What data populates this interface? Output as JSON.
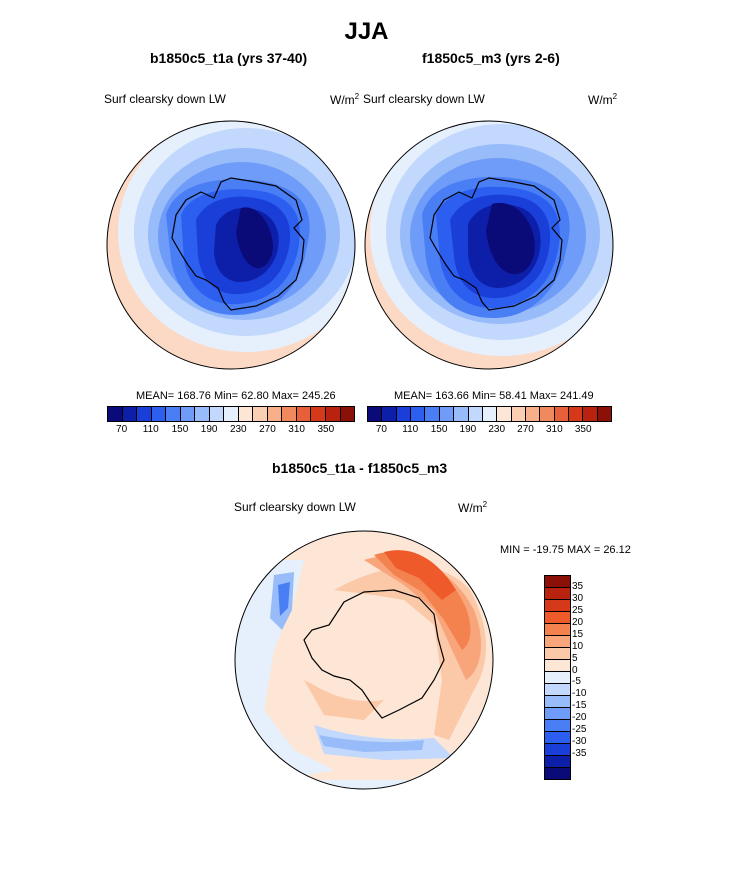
{
  "figure": {
    "title": "JJA"
  },
  "left_panel": {
    "title": "b1850c5_t1a (yrs 37-40)",
    "variable": "Surf clearsky down LW",
    "units": "W/m",
    "units_sup": "2",
    "stats": "MEAN= 168.76  Min=  62.80  Max= 245.26"
  },
  "right_panel": {
    "title": "f1850c5_m3 (yrs 2-6)",
    "variable": "Surf clearsky down LW",
    "units": "W/m",
    "units_sup": "2",
    "stats": "MEAN= 163.66  Min=  58.41  Max= 241.49"
  },
  "diff_panel": {
    "title": "b1850c5_t1a - f1850c5_m3",
    "variable": "Surf clearsky down LW",
    "units": "W/m",
    "units_sup": "2",
    "stats": "MIN = -19.75 MAX =  26.12"
  },
  "colorbar_abs": {
    "colors": [
      "#0a0a78",
      "#0d1fa8",
      "#1a3fd8",
      "#2c5ef0",
      "#4a7ef5",
      "#6f9cf8",
      "#98bbfa",
      "#c2d8fc",
      "#e6f0fd",
      "#fde6d6",
      "#fbcfb2",
      "#f7b08a",
      "#f08a5e",
      "#e8603a",
      "#d6381a",
      "#b8220e",
      "#8a1008"
    ],
    "ticks": [
      "70",
      "110",
      "150",
      "190",
      "230",
      "270",
      "310",
      "350"
    ]
  },
  "colorbar_diff": {
    "colors_top_to_bottom": [
      "#8a1008",
      "#b8220e",
      "#d6381a",
      "#ee5a2a",
      "#f4824f",
      "#f8a57c",
      "#fbc8a8",
      "#fde6d6",
      "#e6f0fd",
      "#c2d8fc",
      "#98bbfa",
      "#6f9cf8",
      "#4a7ef5",
      "#2c5ef0",
      "#1a3fd8",
      "#0d1fa8",
      "#0a0a78"
    ],
    "ticks": [
      "35",
      "30",
      "25",
      "20",
      "15",
      "10",
      "5",
      "0",
      "-5",
      "-10",
      "-15",
      "-20",
      "-25",
      "-30",
      "-35"
    ]
  },
  "fields": {
    "abs_outer": "#fbd9c4",
    "abs_ring1": "#e6f0fd",
    "abs_ring2": "#c2d8fc",
    "abs_ring3": "#98bbfa",
    "abs_ring4": "#6f9cf8",
    "abs_ring5": "#4a7ef5",
    "abs_ring6": "#2c5ef0",
    "abs_ring7": "#1a3fd8",
    "abs_core": "#0d1fa8",
    "abs_center": "#0a0a78",
    "diff_base": "#fde6d6",
    "diff_ocean": "#e6f0fd",
    "diff_warm1": "#fbc8a8",
    "diff_warm2": "#f8a57c",
    "diff_warm3": "#f4824f",
    "diff_warm4": "#ee5a2a",
    "diff_cool1": "#c2d8fc",
    "diff_cool2": "#98bbfa",
    "diff_cool3": "#4a7ef5"
  }
}
